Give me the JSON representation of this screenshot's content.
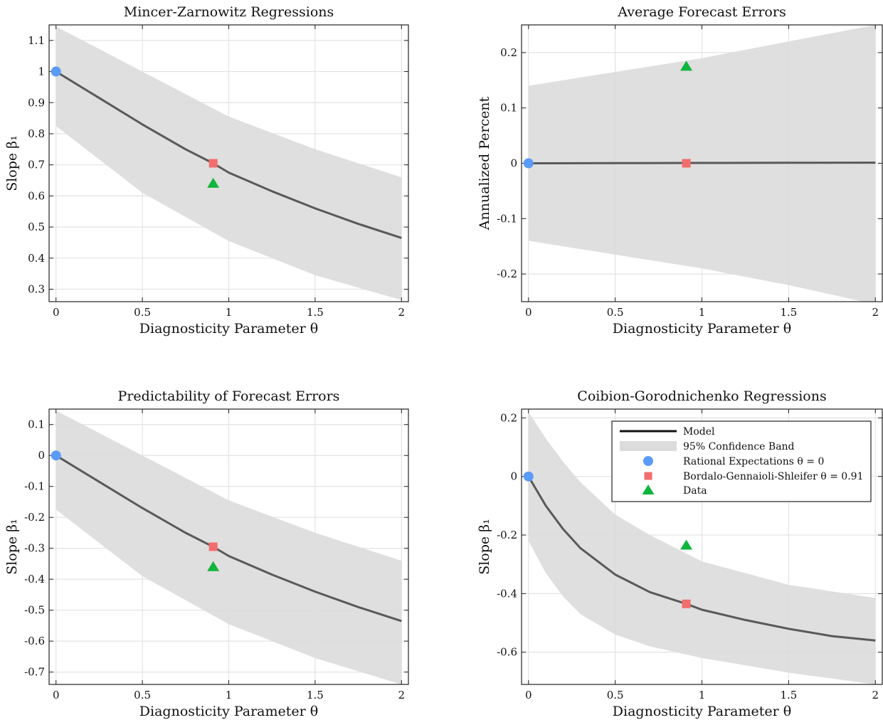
{
  "colors": {
    "band": "#dcdcdc",
    "line": "#595959",
    "rational": "#5b9bf8",
    "bgs": "#f26d6d",
    "data": "#10b53c",
    "grid": "#e3e3e3"
  },
  "legend": {
    "model": "Model",
    "band": "95% Confidence Band",
    "rational": "Rational Expectations θ = 0",
    "bgs": "Bordalo-Gennaioli-Shleifer θ = 0.91",
    "data": "Data"
  },
  "chart_data": [
    {
      "type": "line",
      "title": "Mincer-Zarnowitz Regressions",
      "xlabel": "Diagnosticity Parameter θ",
      "ylabel": "Slope β₁",
      "xlim": [
        -0.04,
        2.04
      ],
      "ylim": [
        0.26,
        1.15
      ],
      "xticks": [
        0,
        0.5,
        1,
        1.5,
        2
      ],
      "xtick_labels": [
        "0",
        "0.5",
        "1",
        "1.5",
        "2"
      ],
      "yticks": [
        0.3,
        0.4,
        0.5,
        0.6,
        0.7,
        0.8,
        0.9,
        1.0,
        1.1
      ],
      "ytick_labels": [
        "0.3",
        "0.4",
        "0.5",
        "0.6",
        "0.7",
        "0.8",
        "0.9",
        "1",
        "1.1"
      ],
      "grid": true,
      "legend": false,
      "model": {
        "x": [
          0,
          0.25,
          0.5,
          0.75,
          0.91,
          1.0,
          1.25,
          1.5,
          1.75,
          2.0
        ],
        "y": [
          1.0,
          0.915,
          0.83,
          0.75,
          0.705,
          0.675,
          0.615,
          0.56,
          0.51,
          0.465
        ]
      },
      "band": {
        "x": [
          0,
          0.5,
          1.0,
          1.5,
          2.0
        ],
        "lower": [
          0.825,
          0.61,
          0.455,
          0.345,
          0.265
        ],
        "upper": [
          1.145,
          1.0,
          0.855,
          0.75,
          0.66
        ]
      },
      "rational": {
        "x": 0,
        "y": 1.0
      },
      "bgs": {
        "x": 0.91,
        "y": 0.705
      },
      "data_point": {
        "x": 0.91,
        "y": 0.64
      }
    },
    {
      "type": "line",
      "title": "Average Forecast Errors",
      "xlabel": "Diagnosticity Parameter θ",
      "ylabel": "Annualized Percent",
      "xlim": [
        -0.04,
        2.04
      ],
      "ylim": [
        -0.25,
        0.25
      ],
      "xticks": [
        0,
        0.5,
        1,
        1.5,
        2
      ],
      "xtick_labels": [
        "0",
        "0.5",
        "1",
        "1.5",
        "2"
      ],
      "yticks": [
        -0.2,
        -0.1,
        0,
        0.1,
        0.2
      ],
      "ytick_labels": [
        "-0.2",
        "-0.1",
        "0",
        "0.1",
        "0.2"
      ],
      "grid": true,
      "legend": false,
      "model": {
        "x": [
          0,
          0.5,
          1.0,
          1.5,
          2.0
        ],
        "y": [
          0,
          0.0003,
          0.0006,
          0.0009,
          0.0012
        ]
      },
      "band": {
        "x": [
          0,
          0.5,
          1.0,
          1.5,
          2.0
        ],
        "lower": [
          -0.14,
          -0.165,
          -0.19,
          -0.22,
          -0.255
        ],
        "upper": [
          0.14,
          0.165,
          0.19,
          0.22,
          0.25
        ]
      },
      "rational": {
        "x": 0,
        "y": 0
      },
      "bgs": {
        "x": 0.91,
        "y": 0
      },
      "data_point": {
        "x": 0.91,
        "y": 0.175
      }
    },
    {
      "type": "line",
      "title": "Predictability of Forecast Errors",
      "xlabel": "Diagnosticity Parameter θ",
      "ylabel": "Slope β₁",
      "xlim": [
        -0.04,
        2.04
      ],
      "ylim": [
        -0.74,
        0.15
      ],
      "xticks": [
        0,
        0.5,
        1,
        1.5,
        2
      ],
      "xtick_labels": [
        "0",
        "0.5",
        "1",
        "1.5",
        "2"
      ],
      "yticks": [
        -0.7,
        -0.6,
        -0.5,
        -0.4,
        -0.3,
        -0.2,
        -0.1,
        0,
        0.1
      ],
      "ytick_labels": [
        "-0.7",
        "-0.6",
        "-0.5",
        "-0.4",
        "-0.3",
        "-0.2",
        "-0.1",
        "0",
        "0.1"
      ],
      "grid": true,
      "legend": false,
      "model": {
        "x": [
          0,
          0.25,
          0.5,
          0.75,
          0.91,
          1.0,
          1.25,
          1.5,
          1.75,
          2.0
        ],
        "y": [
          0,
          -0.085,
          -0.17,
          -0.25,
          -0.295,
          -0.325,
          -0.385,
          -0.44,
          -0.49,
          -0.535
        ]
      },
      "band": {
        "x": [
          0,
          0.5,
          1.0,
          1.5,
          2.0
        ],
        "lower": [
          -0.175,
          -0.39,
          -0.545,
          -0.655,
          -0.74
        ],
        "upper": [
          0.145,
          0.0,
          -0.145,
          -0.25,
          -0.34
        ]
      },
      "rational": {
        "x": 0,
        "y": 0
      },
      "bgs": {
        "x": 0.91,
        "y": -0.295
      },
      "data_point": {
        "x": 0.91,
        "y": -0.36
      }
    },
    {
      "type": "line",
      "title": "Coibion-Gorodnichenko Regressions",
      "xlabel": "Diagnosticity Parameter θ",
      "ylabel": "Slope β₁",
      "xlim": [
        -0.04,
        2.04
      ],
      "ylim": [
        -0.71,
        0.23
      ],
      "xticks": [
        0,
        0.5,
        1,
        1.5,
        2
      ],
      "xtick_labels": [
        "0",
        "0.5",
        "1",
        "1.5",
        "2"
      ],
      "yticks": [
        -0.6,
        -0.4,
        -0.2,
        0,
        0.2
      ],
      "ytick_labels": [
        "-0.6",
        "-0.4",
        "-0.2",
        "0",
        "0.2"
      ],
      "grid": true,
      "legend": "top-right",
      "model": {
        "x": [
          0,
          0.1,
          0.2,
          0.3,
          0.5,
          0.7,
          0.91,
          1.0,
          1.25,
          1.5,
          1.75,
          2.0
        ],
        "y": [
          0,
          -0.1,
          -0.18,
          -0.245,
          -0.335,
          -0.395,
          -0.435,
          -0.455,
          -0.49,
          -0.52,
          -0.545,
          -0.56
        ]
      },
      "band": {
        "x": [
          0,
          0.1,
          0.2,
          0.3,
          0.5,
          0.7,
          1.0,
          1.5,
          2.0
        ],
        "lower": [
          -0.22,
          -0.33,
          -0.41,
          -0.47,
          -0.54,
          -0.58,
          -0.62,
          -0.67,
          -0.71
        ],
        "upper": [
          0.22,
          0.13,
          0.05,
          -0.02,
          -0.13,
          -0.2,
          -0.29,
          -0.37,
          -0.415
        ]
      },
      "rational": {
        "x": 0,
        "y": 0
      },
      "bgs": {
        "x": 0.91,
        "y": -0.435
      },
      "data_point": {
        "x": 0.91,
        "y": -0.235
      }
    }
  ]
}
